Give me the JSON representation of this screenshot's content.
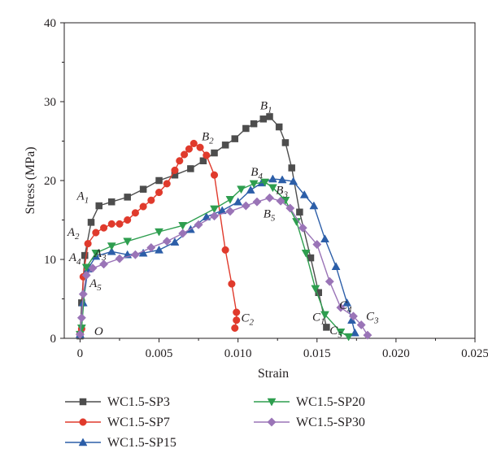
{
  "chart_data": {
    "type": "line",
    "xlabel": "Strain",
    "ylabel": "Stress (MPa)",
    "xlim": [
      -0.001,
      0.025
    ],
    "ylim": [
      0,
      40
    ],
    "xticks": [
      0,
      0.005,
      0.01,
      0.015,
      0.02,
      0.025
    ],
    "xtick_labels": [
      "0",
      "0.005",
      "0.010",
      "0.015",
      "0.020",
      "0.025"
    ],
    "yticks": [
      0,
      10,
      20,
      30,
      40
    ],
    "ytick_labels": [
      "0",
      "10",
      "20",
      "30",
      "40"
    ],
    "grid": false,
    "legend_position": "bottom",
    "series": [
      {
        "name": "WC1.5-SP3",
        "color": "#4d4d4d",
        "marker": "square",
        "points": [
          [
            0,
            0.3
          ],
          [
            0.0001,
            4.5
          ],
          [
            0.0003,
            10.5
          ],
          [
            0.0007,
            14.7
          ],
          [
            0.0012,
            16.8
          ],
          [
            0.002,
            17.3
          ],
          [
            0.003,
            17.9
          ],
          [
            0.004,
            18.9
          ],
          [
            0.005,
            20.0
          ],
          [
            0.006,
            20.7
          ],
          [
            0.007,
            21.5
          ],
          [
            0.0078,
            22.5
          ],
          [
            0.0085,
            23.5
          ],
          [
            0.0092,
            24.5
          ],
          [
            0.0098,
            25.3
          ],
          [
            0.0105,
            26.6
          ],
          [
            0.011,
            27.2
          ],
          [
            0.0116,
            27.8
          ],
          [
            0.012,
            28.1
          ],
          [
            0.0126,
            26.8
          ],
          [
            0.013,
            24.8
          ],
          [
            0.0134,
            21.6
          ],
          [
            0.0139,
            16.0
          ],
          [
            0.0146,
            10.2
          ],
          [
            0.0151,
            5.8
          ],
          [
            0.0156,
            1.4
          ]
        ]
      },
      {
        "name": "WC1.5-SP7",
        "color": "#e03a2c",
        "marker": "circle",
        "points": [
          [
            0,
            0.6
          ],
          [
            0.0001,
            1.2
          ],
          [
            0.0002,
            7.8
          ],
          [
            0.0005,
            12.0
          ],
          [
            0.001,
            13.4
          ],
          [
            0.0015,
            14.0
          ],
          [
            0.002,
            14.5
          ],
          [
            0.0025,
            14.5
          ],
          [
            0.003,
            15.0
          ],
          [
            0.0035,
            15.9
          ],
          [
            0.004,
            16.7
          ],
          [
            0.0045,
            17.5
          ],
          [
            0.005,
            18.5
          ],
          [
            0.0055,
            19.6
          ],
          [
            0.006,
            21.3
          ],
          [
            0.0063,
            22.5
          ],
          [
            0.0066,
            23.3
          ],
          [
            0.0069,
            24.0
          ],
          [
            0.0072,
            24.7
          ],
          [
            0.0076,
            24.2
          ],
          [
            0.008,
            23.2
          ],
          [
            0.0085,
            20.7
          ],
          [
            0.0092,
            11.2
          ],
          [
            0.0096,
            6.9
          ],
          [
            0.0099,
            3.3
          ],
          [
            0.0099,
            2.3
          ],
          [
            0.0098,
            1.3
          ]
        ]
      },
      {
        "name": "WC1.5-SP15",
        "color": "#2c5ea8",
        "marker": "triangle-up",
        "points": [
          [
            0,
            0.5
          ],
          [
            0.0002,
            4.5
          ],
          [
            0.0005,
            8.8
          ],
          [
            0.001,
            10.4
          ],
          [
            0.002,
            11.0
          ],
          [
            0.003,
            10.6
          ],
          [
            0.004,
            10.8
          ],
          [
            0.005,
            11.2
          ],
          [
            0.006,
            12.2
          ],
          [
            0.007,
            13.8
          ],
          [
            0.008,
            15.4
          ],
          [
            0.009,
            16.2
          ],
          [
            0.01,
            17.3
          ],
          [
            0.0108,
            18.8
          ],
          [
            0.0115,
            19.7
          ],
          [
            0.0122,
            20.2
          ],
          [
            0.0128,
            20.1
          ],
          [
            0.0135,
            19.9
          ],
          [
            0.0142,
            18.2
          ],
          [
            0.0148,
            16.8
          ],
          [
            0.0155,
            12.6
          ],
          [
            0.0162,
            9.1
          ],
          [
            0.0169,
            4.5
          ],
          [
            0.0172,
            2.3
          ],
          [
            0.0174,
            0.7
          ]
        ]
      },
      {
        "name": "WC1.5-SP20",
        "color": "#2e9e4f",
        "marker": "triangle-down",
        "points": [
          [
            0,
            0.5
          ],
          [
            0.0001,
            1.3
          ],
          [
            0.0004,
            9.0
          ],
          [
            0.001,
            10.8
          ],
          [
            0.002,
            11.7
          ],
          [
            0.003,
            12.3
          ],
          [
            0.005,
            13.5
          ],
          [
            0.0065,
            14.3
          ],
          [
            0.0085,
            16.4
          ],
          [
            0.0095,
            17.6
          ],
          [
            0.0102,
            18.9
          ],
          [
            0.011,
            19.6
          ],
          [
            0.0117,
            19.8
          ],
          [
            0.0122,
            19.1
          ],
          [
            0.013,
            17.5
          ],
          [
            0.0137,
            14.8
          ],
          [
            0.0143,
            10.8
          ],
          [
            0.0149,
            6.3
          ],
          [
            0.0155,
            3.0
          ],
          [
            0.0165,
            0.8
          ],
          [
            0.017,
            0.2
          ]
        ]
      },
      {
        "name": "WC1.5-SP30",
        "color": "#9a74b7",
        "marker": "diamond",
        "points": [
          [
            0,
            0.5
          ],
          [
            0.0001,
            2.6
          ],
          [
            0.0002,
            5.6
          ],
          [
            0.0004,
            8.0
          ],
          [
            0.0008,
            8.9
          ],
          [
            0.0015,
            9.4
          ],
          [
            0.0025,
            10.1
          ],
          [
            0.0035,
            10.6
          ],
          [
            0.0045,
            11.5
          ],
          [
            0.0055,
            12.3
          ],
          [
            0.0065,
            13.3
          ],
          [
            0.0075,
            14.4
          ],
          [
            0.0085,
            15.5
          ],
          [
            0.0095,
            16.1
          ],
          [
            0.0105,
            16.8
          ],
          [
            0.0112,
            17.3
          ],
          [
            0.012,
            17.8
          ],
          [
            0.0127,
            17.4
          ],
          [
            0.0133,
            16.5
          ],
          [
            0.0141,
            14.0
          ],
          [
            0.015,
            11.9
          ],
          [
            0.0158,
            7.2
          ],
          [
            0.0165,
            3.9
          ],
          [
            0.0173,
            2.8
          ],
          [
            0.0178,
            1.7
          ],
          [
            0.0182,
            0.4
          ]
        ]
      }
    ],
    "annotations": [
      {
        "main": "A",
        "sub": "1",
        "x": -0.0002,
        "y": 17.6
      },
      {
        "main": "A",
        "sub": "2",
        "x": -0.0008,
        "y": 13.0
      },
      {
        "main": "A",
        "sub": "3",
        "x": 0.0009,
        "y": 10.3
      },
      {
        "main": "A",
        "sub": "4",
        "x": -0.0007,
        "y": 9.8
      },
      {
        "main": "A",
        "sub": "5",
        "x": 0.0006,
        "y": 6.5
      },
      {
        "main": "B",
        "sub": "1",
        "x": 0.0114,
        "y": 29.0
      },
      {
        "main": "B",
        "sub": "2",
        "x": 0.0077,
        "y": 25.1
      },
      {
        "main": "B",
        "sub": "3",
        "x": 0.0124,
        "y": 18.3
      },
      {
        "main": "B",
        "sub": "4",
        "x": 0.0108,
        "y": 20.6
      },
      {
        "main": "B",
        "sub": "5",
        "x": 0.0116,
        "y": 15.3
      },
      {
        "main": "C",
        "sub": "1",
        "x": 0.0147,
        "y": 2.2
      },
      {
        "main": "C",
        "sub": "2",
        "x": 0.0102,
        "y": 2.1
      },
      {
        "main": "C",
        "sub": "3",
        "x": 0.0181,
        "y": 2.3
      },
      {
        "main": "C",
        "sub": "4",
        "x": 0.0164,
        "y": 3.7
      },
      {
        "main": "C",
        "sub": "5",
        "x": 0.0158,
        "y": 0.5
      },
      {
        "main": "O",
        "sub": "",
        "x": 0.0009,
        "y": 0.4
      }
    ]
  }
}
